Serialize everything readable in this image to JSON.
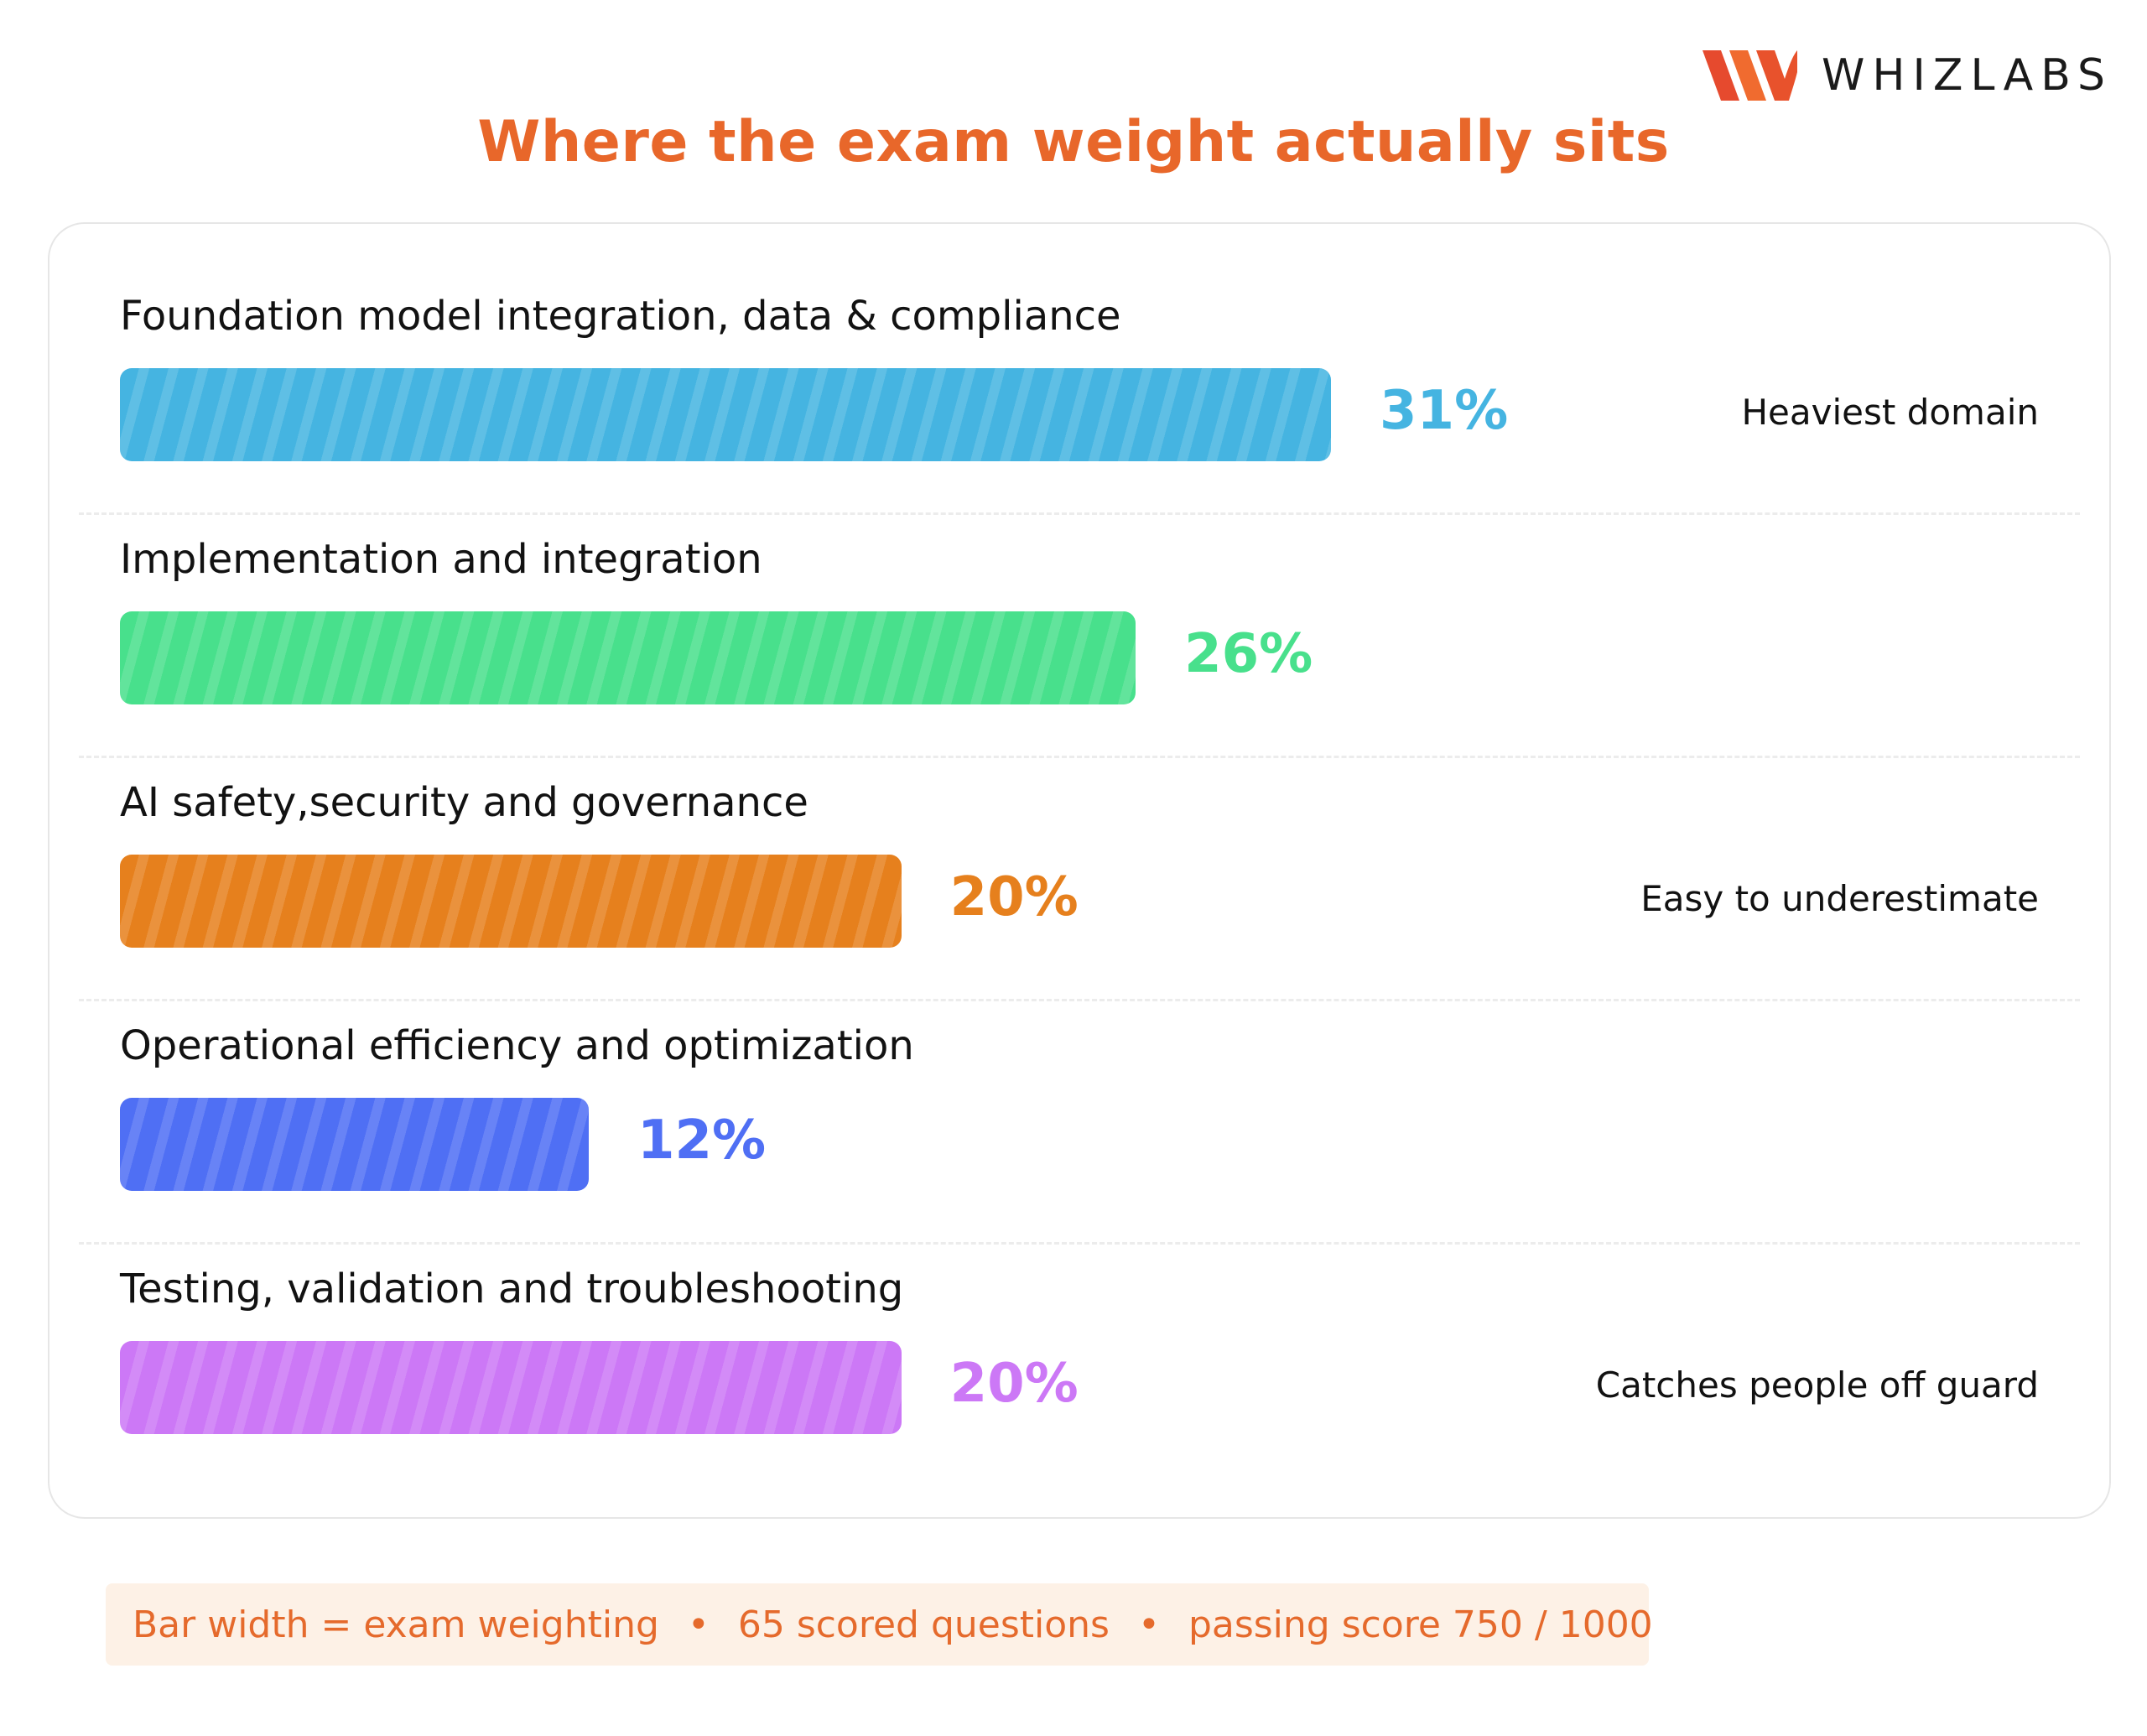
{
  "brand": {
    "name": "WHIZLABS"
  },
  "title": "Where the exam weight actually sits",
  "chart_data": {
    "type": "bar",
    "orientation": "horizontal",
    "title": "Where the exam weight actually sits",
    "categories": [
      "Foundation model integration, data & compliance",
      "Implementation and integration",
      "AI safety,security and governance",
      "Operational efficiency and optimization",
      "Testing, validation and troubleshooting"
    ],
    "values": [
      31,
      26,
      20,
      12,
      20
    ],
    "value_labels": [
      "31%",
      "26%",
      "20%",
      "12%",
      "20%"
    ],
    "annotations": [
      "Heaviest domain",
      "",
      "Easy to underestimate",
      "",
      "Catches people off guard"
    ],
    "colors": [
      "#45b4e1",
      "#48e08c",
      "#e6801d",
      "#4f6ff4",
      "#cc78f6"
    ],
    "xlabel": "",
    "ylabel": "",
    "xlim": [
      0,
      100
    ],
    "grid": false,
    "legend": "none"
  },
  "footer": {
    "bar_width_note": "Bar width = exam weighting",
    "questions": "65 scored questions",
    "passing": "passing score 750 / 1000",
    "separator": "•"
  }
}
